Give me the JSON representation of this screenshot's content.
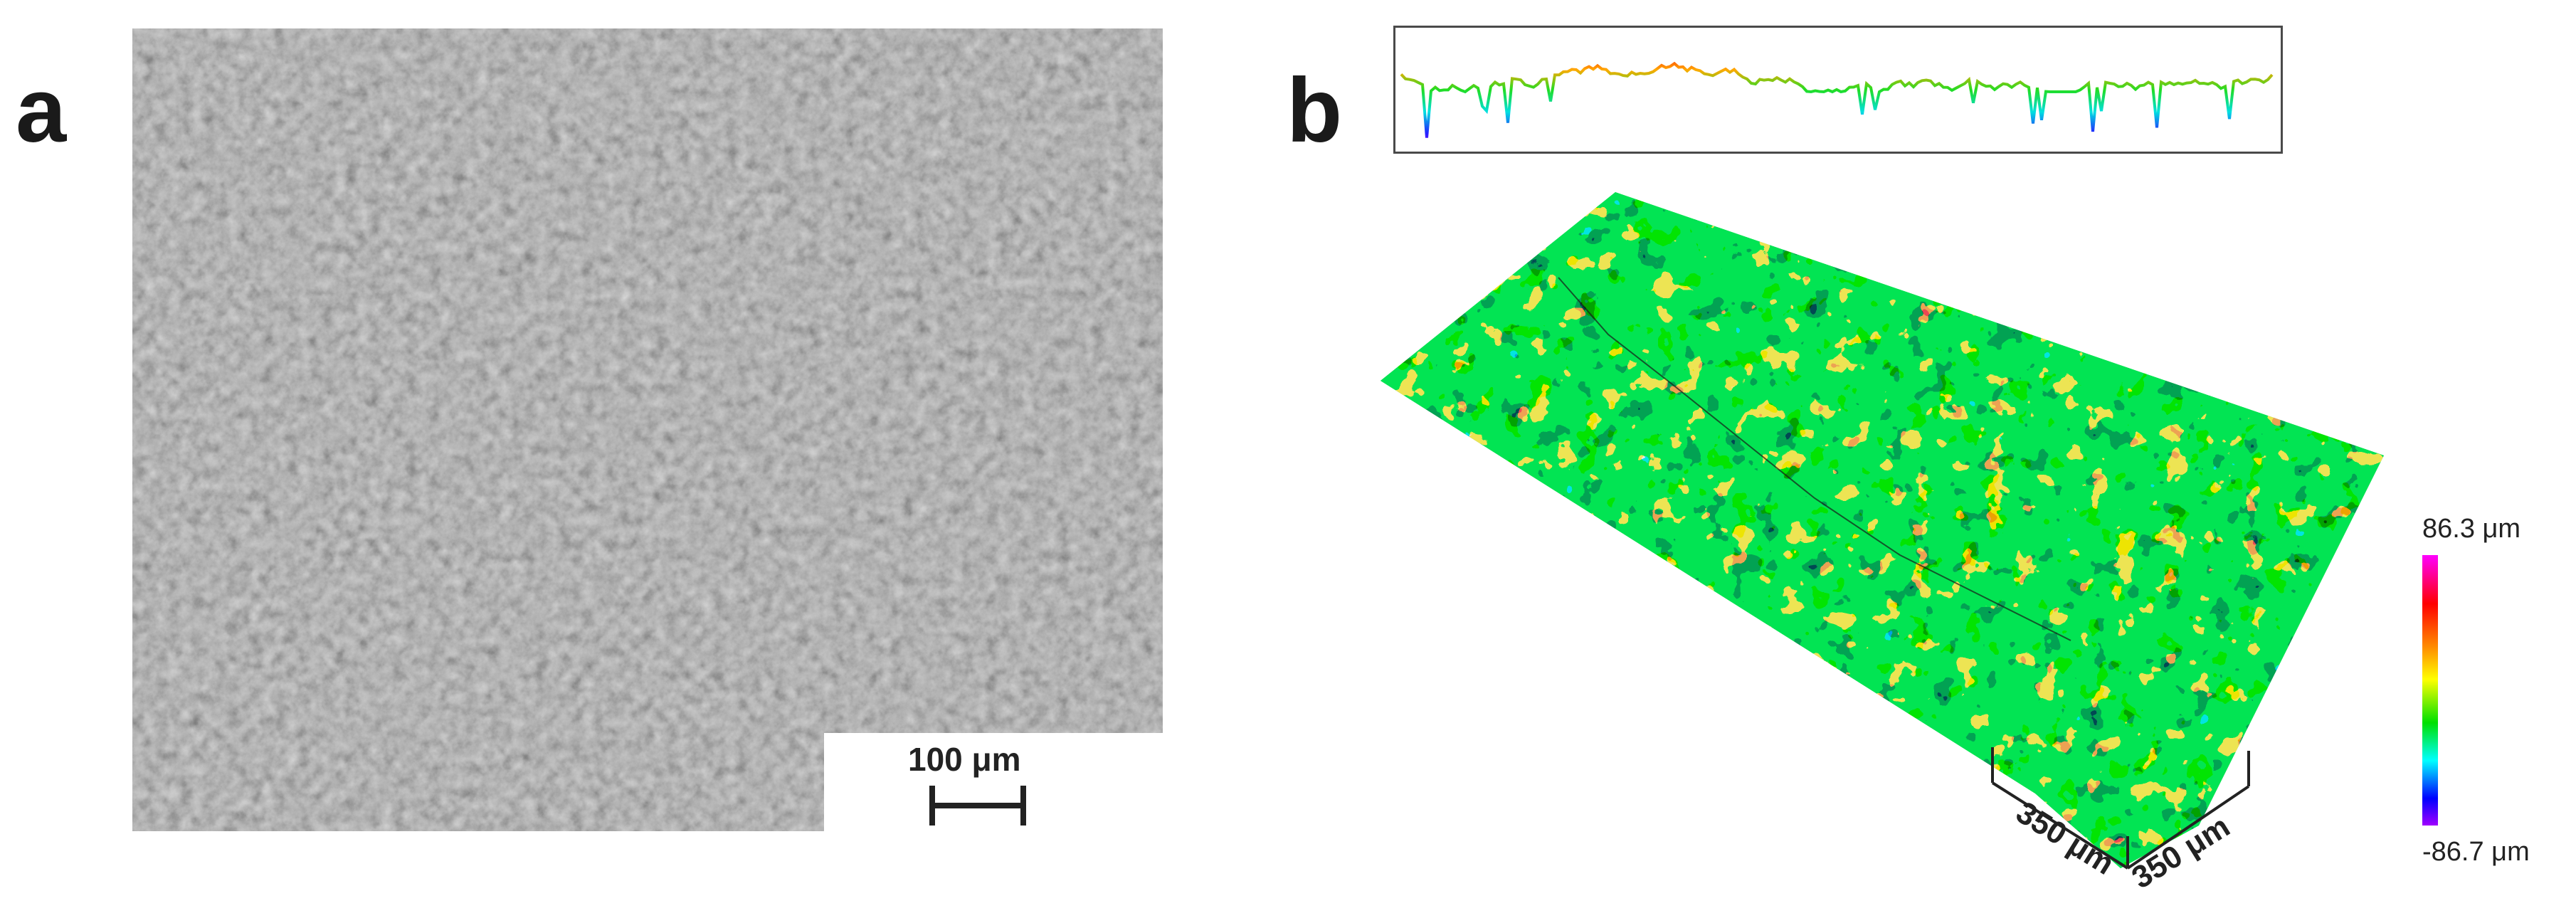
{
  "panels": {
    "a": {
      "letter": "a",
      "scale_bar_label": "100 μm"
    },
    "b": {
      "letter": "b",
      "axis_left_label": "350 μm",
      "axis_right_label": "350 μm",
      "colorbar_max": "86.3 μm",
      "colorbar_min": "-86.7 μm"
    }
  },
  "colors": {
    "sem_gray": "#6a6a6a",
    "surface_green": "#22cc22",
    "surface_red": "#ff2200",
    "surface_magenta": "#ff00aa"
  }
}
